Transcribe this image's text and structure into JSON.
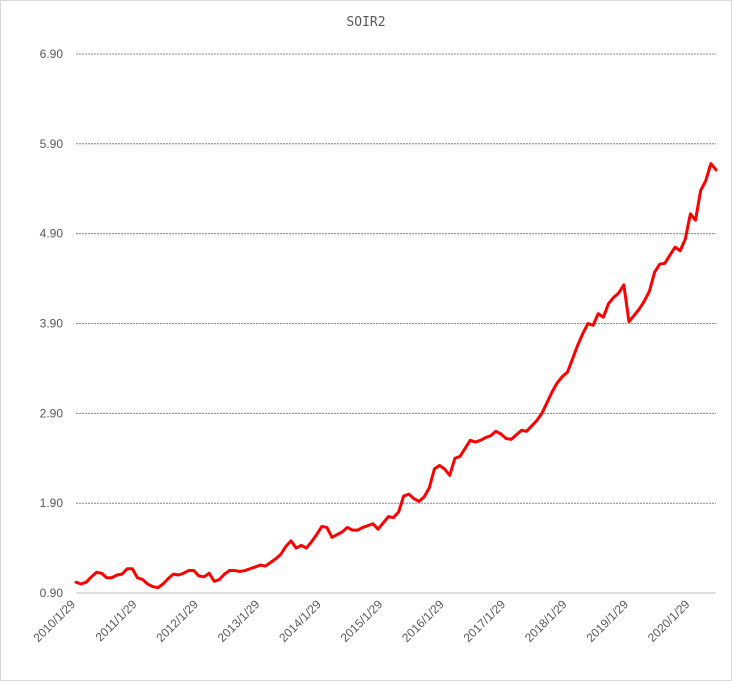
{
  "chart_data": {
    "type": "line",
    "title": "SOIR2",
    "xlabel": "",
    "ylabel": "",
    "ylim": [
      0.9,
      6.9
    ],
    "y_ticks": [
      "0.90",
      "1.90",
      "2.90",
      "3.90",
      "4.90",
      "5.90",
      "6.90"
    ],
    "x_tick_labels": [
      "2010/1/29",
      "2011/1/29",
      "2012/1/29",
      "2013/1/29",
      "2014/1/29",
      "2015/1/29",
      "2016/1/29",
      "2017/1/29",
      "2018/1/29",
      "2019/1/29",
      "2020/1/29"
    ],
    "grid": "horizontal dashed",
    "legend": "none",
    "line_color": "#ff0000",
    "series": [
      {
        "x_start": "2010-01",
        "frequency": "monthly",
        "values": [
          1.02,
          1.0,
          1.02,
          1.08,
          1.13,
          1.12,
          1.07,
          1.07,
          1.1,
          1.11,
          1.17,
          1.17,
          1.07,
          1.05,
          1.0,
          0.97,
          0.96,
          1.0,
          1.06,
          1.11,
          1.1,
          1.12,
          1.15,
          1.15,
          1.09,
          1.08,
          1.12,
          1.03,
          1.05,
          1.11,
          1.15,
          1.15,
          1.14,
          1.15,
          1.17,
          1.19,
          1.21,
          1.2,
          1.24,
          1.28,
          1.33,
          1.42,
          1.48,
          1.4,
          1.43,
          1.4,
          1.47,
          1.55,
          1.64,
          1.63,
          1.52,
          1.55,
          1.58,
          1.63,
          1.6,
          1.6,
          1.63,
          1.65,
          1.67,
          1.61,
          1.68,
          1.75,
          1.74,
          1.8,
          1.98,
          2.0,
          1.95,
          1.92,
          1.97,
          2.07,
          2.28,
          2.32,
          2.28,
          2.21,
          2.4,
          2.42,
          2.51,
          2.6,
          2.58,
          2.6,
          2.63,
          2.65,
          2.7,
          2.67,
          2.62,
          2.61,
          2.66,
          2.71,
          2.7,
          2.76,
          2.82,
          2.9,
          3.02,
          3.14,
          3.24,
          3.31,
          3.36,
          3.51,
          3.66,
          3.79,
          3.9,
          3.88,
          4.01,
          3.97,
          4.12,
          4.19,
          4.24,
          4.33,
          3.92,
          3.99,
          4.06,
          4.15,
          4.26,
          4.47,
          4.56,
          4.57,
          4.66,
          4.75,
          4.71,
          4.84,
          5.12,
          5.05,
          5.38,
          5.49,
          5.68,
          5.61
        ]
      }
    ]
  }
}
